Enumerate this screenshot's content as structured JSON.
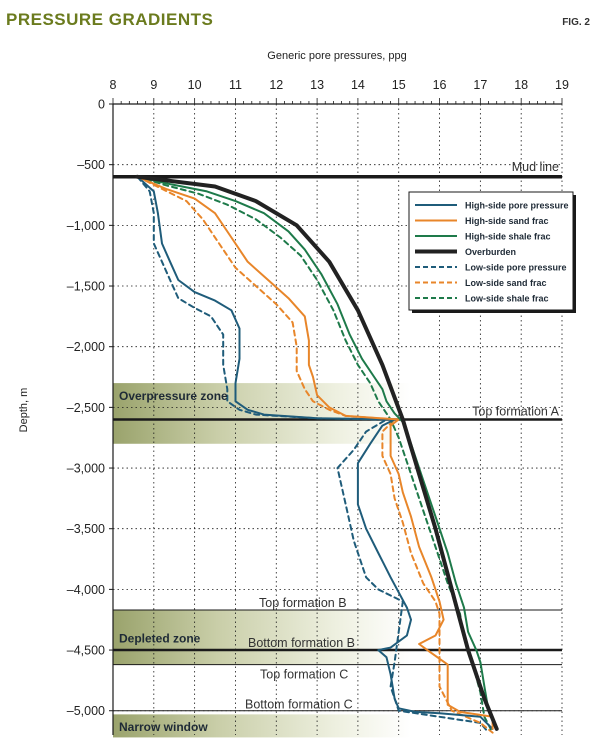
{
  "header": {
    "title": "PRESSURE GRADIENTS",
    "fig": "FIG. 2"
  },
  "chart_data": {
    "type": "line",
    "xlabel": "Generic pore pressures, ppg",
    "ylabel": "Depth, m",
    "xlim": [
      8,
      19
    ],
    "ylim": [
      0,
      -5200
    ],
    "x_ticks": [
      "8",
      "9",
      "10",
      "11",
      "12",
      "13",
      "14",
      "15",
      "16",
      "17",
      "18",
      "19"
    ],
    "y_ticks": [
      {
        "value": 0,
        "label": "0"
      },
      {
        "value": -500,
        "label": "–500"
      },
      {
        "value": -1000,
        "label": "–1,000"
      },
      {
        "value": -1500,
        "label": "–1,500"
      },
      {
        "value": -2000,
        "label": "–2,000"
      },
      {
        "value": -2500,
        "label": "–2,500"
      },
      {
        "value": -3000,
        "label": "–3,000"
      },
      {
        "value": -3500,
        "label": "–3,500"
      },
      {
        "value": -4000,
        "label": "–4,000"
      },
      {
        "value": -4500,
        "label": "–4,500"
      },
      {
        "value": -5000,
        "label": "–5,000"
      }
    ],
    "grid": true,
    "legend_position": "top-right",
    "zones": [
      {
        "label": "Overpressure zone",
        "top": -2300,
        "bottom": -2800
      },
      {
        "label": "Depleted zone",
        "top": -4170,
        "bottom": -4620
      },
      {
        "label": "Narrow window",
        "top": -5030,
        "bottom": -5220
      }
    ],
    "markers": [
      {
        "label": "Mud line",
        "depth": -600,
        "bold": true
      },
      {
        "label": "Top formation A",
        "depth": -2600,
        "bold": true
      },
      {
        "label": "Top formation B",
        "depth": -4170,
        "bold": false
      },
      {
        "label": "Bottom formation B",
        "depth": -4500,
        "bold": true
      },
      {
        "label": "Top formation C",
        "depth": -4620,
        "bold": false
      },
      {
        "label": "Bottom formation C",
        "depth": -5000,
        "bold": false
      }
    ],
    "series": [
      {
        "name": "High-side pore pressure",
        "color": "#1f5c7a",
        "dash": false,
        "width": 2,
        "points": [
          [
            8.6,
            -600
          ],
          [
            9,
            -720
          ],
          [
            9.1,
            -900
          ],
          [
            9.2,
            -1150
          ],
          [
            9.4,
            -1300
          ],
          [
            9.6,
            -1450
          ],
          [
            10,
            -1550
          ],
          [
            10.5,
            -1620
          ],
          [
            10.9,
            -1700
          ],
          [
            11.1,
            -1850
          ],
          [
            11.1,
            -2100
          ],
          [
            11.0,
            -2300
          ],
          [
            11.0,
            -2450
          ],
          [
            11.3,
            -2520
          ],
          [
            11.7,
            -2560
          ],
          [
            13.0,
            -2590
          ],
          [
            14.9,
            -2600
          ],
          [
            14.6,
            -2650
          ],
          [
            14.3,
            -2800
          ],
          [
            14.0,
            -2960
          ],
          [
            14.0,
            -3300
          ],
          [
            14.2,
            -3500
          ],
          [
            14.5,
            -3700
          ],
          [
            14.8,
            -3900
          ],
          [
            15.2,
            -4150
          ],
          [
            15.3,
            -4250
          ],
          [
            15.2,
            -4380
          ],
          [
            14.8,
            -4480
          ],
          [
            14.5,
            -4500
          ],
          [
            14.7,
            -4560
          ],
          [
            14.8,
            -4700
          ],
          [
            14.9,
            -4900
          ],
          [
            15.0,
            -4980
          ],
          [
            15.4,
            -5010
          ],
          [
            16.0,
            -5020
          ],
          [
            17.0,
            -5050
          ],
          [
            17.3,
            -5150
          ]
        ]
      },
      {
        "name": "High-side sand frac",
        "color": "#e8862a",
        "dash": false,
        "width": 2,
        "points": [
          [
            8.6,
            -600
          ],
          [
            9.3,
            -700
          ],
          [
            10.0,
            -780
          ],
          [
            10.5,
            -900
          ],
          [
            10.9,
            -1100
          ],
          [
            11.3,
            -1300
          ],
          [
            11.8,
            -1450
          ],
          [
            12.3,
            -1600
          ],
          [
            12.7,
            -1750
          ],
          [
            12.8,
            -1950
          ],
          [
            12.8,
            -2150
          ],
          [
            12.9,
            -2250
          ],
          [
            13.0,
            -2400
          ],
          [
            13.3,
            -2500
          ],
          [
            13.7,
            -2570
          ],
          [
            15.0,
            -2600
          ],
          [
            14.8,
            -2650
          ],
          [
            14.8,
            -2900
          ],
          [
            15.0,
            -3050
          ],
          [
            15.1,
            -3200
          ],
          [
            15.3,
            -3400
          ],
          [
            15.5,
            -3650
          ],
          [
            15.8,
            -3900
          ],
          [
            16.0,
            -4100
          ],
          [
            16.1,
            -4250
          ],
          [
            15.9,
            -4380
          ],
          [
            15.5,
            -4450
          ],
          [
            15.7,
            -4500
          ],
          [
            16.2,
            -4620
          ],
          [
            16.2,
            -4800
          ],
          [
            16.2,
            -4950
          ],
          [
            16.5,
            -5010
          ],
          [
            17.3,
            -5050
          ],
          [
            17.3,
            -5150
          ]
        ]
      },
      {
        "name": "High-side shale frac",
        "color": "#1e7a4a",
        "dash": false,
        "width": 2,
        "points": [
          [
            8.6,
            -600
          ],
          [
            9.4,
            -660
          ],
          [
            10.3,
            -720
          ],
          [
            11.0,
            -800
          ],
          [
            11.7,
            -900
          ],
          [
            12.3,
            -1050
          ],
          [
            12.7,
            -1200
          ],
          [
            13.1,
            -1400
          ],
          [
            13.5,
            -1650
          ],
          [
            13.8,
            -1900
          ],
          [
            14.1,
            -2100
          ],
          [
            14.4,
            -2250
          ],
          [
            14.6,
            -2350
          ],
          [
            14.7,
            -2450
          ],
          [
            14.9,
            -2550
          ],
          [
            15.1,
            -2620
          ],
          [
            15.3,
            -2800
          ],
          [
            15.6,
            -3100
          ],
          [
            15.9,
            -3400
          ],
          [
            16.2,
            -3700
          ],
          [
            16.4,
            -3950
          ],
          [
            16.6,
            -4150
          ],
          [
            16.7,
            -4350
          ],
          [
            16.9,
            -4500
          ],
          [
            17.0,
            -4600
          ],
          [
            17.1,
            -4800
          ],
          [
            17.2,
            -5000
          ],
          [
            17.4,
            -5150
          ]
        ]
      },
      {
        "name": "Overburden",
        "color": "#222222",
        "dash": false,
        "width": 4,
        "points": [
          [
            8.6,
            -600
          ],
          [
            10.5,
            -680
          ],
          [
            11.5,
            -800
          ],
          [
            12.5,
            -1000
          ],
          [
            13.3,
            -1300
          ],
          [
            14.0,
            -1700
          ],
          [
            14.6,
            -2150
          ],
          [
            15.1,
            -2600
          ],
          [
            15.5,
            -3050
          ],
          [
            15.9,
            -3500
          ],
          [
            16.3,
            -4000
          ],
          [
            16.7,
            -4500
          ],
          [
            17.1,
            -4900
          ],
          [
            17.4,
            -5150
          ]
        ]
      },
      {
        "name": "Low-side pore pressure",
        "color": "#1f5c7a",
        "dash": true,
        "width": 2,
        "points": [
          [
            8.6,
            -600
          ],
          [
            8.9,
            -720
          ],
          [
            9.0,
            -900
          ],
          [
            9.0,
            -1150
          ],
          [
            9.2,
            -1300
          ],
          [
            9.4,
            -1450
          ],
          [
            9.6,
            -1600
          ],
          [
            10.0,
            -1680
          ],
          [
            10.4,
            -1750
          ],
          [
            10.7,
            -1900
          ],
          [
            10.7,
            -2150
          ],
          [
            10.8,
            -2350
          ],
          [
            10.8,
            -2450
          ],
          [
            11.1,
            -2520
          ],
          [
            11.5,
            -2560
          ],
          [
            13.0,
            -2590
          ],
          [
            14.7,
            -2600
          ],
          [
            14.2,
            -2700
          ],
          [
            13.9,
            -2850
          ],
          [
            13.5,
            -3000
          ],
          [
            13.7,
            -3300
          ],
          [
            13.9,
            -3600
          ],
          [
            14.2,
            -3900
          ],
          [
            14.5,
            -4000
          ],
          [
            14.8,
            -4050
          ],
          [
            15.1,
            -4100
          ],
          [
            14.9,
            -4600
          ],
          [
            14.8,
            -4800
          ],
          [
            15.0,
            -5000
          ],
          [
            16.0,
            -5050
          ],
          [
            17.0,
            -5100
          ],
          [
            17.2,
            -5180
          ]
        ]
      },
      {
        "name": "Low-side sand frac",
        "color": "#e8862a",
        "dash": true,
        "width": 2,
        "points": [
          [
            8.6,
            -600
          ],
          [
            9.2,
            -700
          ],
          [
            9.8,
            -800
          ],
          [
            10.2,
            -950
          ],
          [
            10.6,
            -1150
          ],
          [
            11.0,
            -1350
          ],
          [
            11.5,
            -1500
          ],
          [
            12.0,
            -1650
          ],
          [
            12.4,
            -1800
          ],
          [
            12.5,
            -2000
          ],
          [
            12.5,
            -2200
          ],
          [
            12.7,
            -2350
          ],
          [
            12.9,
            -2450
          ],
          [
            13.3,
            -2520
          ],
          [
            13.7,
            -2570
          ],
          [
            14.9,
            -2600
          ],
          [
            14.6,
            -2700
          ],
          [
            14.6,
            -2900
          ],
          [
            14.8,
            -3050
          ],
          [
            14.9,
            -3250
          ],
          [
            15.1,
            -3450
          ],
          [
            15.3,
            -3700
          ],
          [
            15.6,
            -3950
          ],
          [
            15.9,
            -4100
          ],
          [
            16.0,
            -4200
          ],
          [
            16.0,
            -4500
          ],
          [
            16.0,
            -4800
          ],
          [
            16.3,
            -5000
          ],
          [
            17.0,
            -5100
          ],
          [
            17.3,
            -5180
          ]
        ]
      },
      {
        "name": "Low-side shale frac",
        "color": "#1e7a4a",
        "dash": true,
        "width": 2,
        "points": [
          [
            8.6,
            -600
          ],
          [
            9.3,
            -670
          ],
          [
            10.1,
            -740
          ],
          [
            10.8,
            -830
          ],
          [
            11.5,
            -950
          ],
          [
            12.1,
            -1100
          ],
          [
            12.6,
            -1250
          ],
          [
            13.0,
            -1450
          ],
          [
            13.4,
            -1700
          ],
          [
            13.7,
            -1950
          ],
          [
            14.0,
            -2150
          ],
          [
            14.3,
            -2300
          ],
          [
            14.5,
            -2450
          ],
          [
            14.8,
            -2600
          ],
          [
            15.0,
            -2750
          ],
          [
            15.3,
            -3050
          ],
          [
            15.6,
            -3350
          ],
          [
            15.9,
            -3650
          ],
          [
            16.2,
            -3950
          ],
          [
            16.5,
            -4200
          ],
          [
            16.6,
            -4400
          ],
          [
            16.8,
            -4600
          ],
          [
            17.0,
            -4850
          ],
          [
            17.1,
            -5050
          ],
          [
            17.3,
            -5180
          ]
        ]
      }
    ]
  }
}
